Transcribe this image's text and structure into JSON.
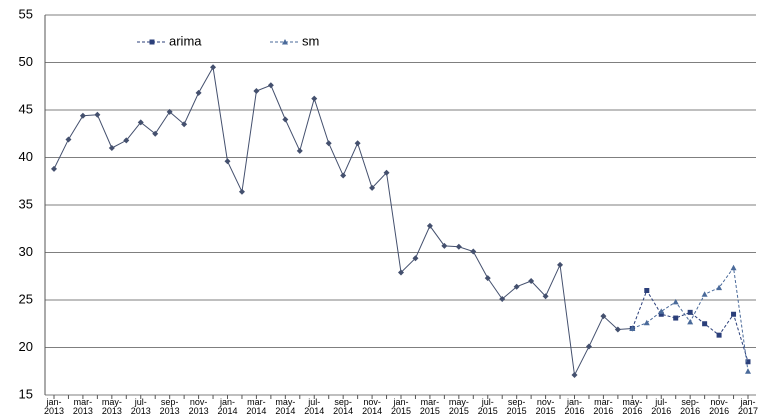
{
  "chart_data": {
    "type": "line",
    "categories": [
      "jan-2013",
      null,
      "mar-2013",
      null,
      "may-2013",
      null,
      "jul-2013",
      null,
      "sep-2013",
      null,
      "nov-2013",
      null,
      "jan-2014",
      null,
      "mar-2014",
      null,
      "may-2014",
      null,
      "jul-2014",
      null,
      "sep-2014",
      null,
      "nov-2014",
      null,
      "jan-2015",
      null,
      "mar-2015",
      null,
      "may-2015",
      null,
      "jul-2015",
      null,
      "sep-2015",
      null,
      "nov-2015",
      null,
      "jan-2016",
      null,
      "mar-2016",
      null,
      "may-2016",
      null,
      "jul-2016",
      null,
      "sep-2016",
      null,
      "nov-2016",
      null,
      "jan-2017"
    ],
    "series": [
      {
        "color": "#44506e",
        "marker": "diamond",
        "dash": false,
        "values": [
          38.8,
          41.9,
          44.4,
          44.5,
          41.0,
          41.8,
          43.7,
          42.5,
          44.8,
          43.5,
          46.8,
          49.5,
          39.6,
          36.4,
          47.0,
          47.6,
          44.0,
          40.7,
          46.2,
          41.5,
          38.1,
          41.5,
          36.8,
          38.4,
          27.9,
          29.4,
          32.8,
          30.7,
          30.6,
          30.1,
          27.3,
          25.1,
          26.4,
          27.0,
          25.4,
          28.7,
          17.1,
          20.1,
          23.3,
          21.9,
          22.0,
          null,
          null,
          null,
          null,
          null,
          null,
          null,
          null
        ]
      },
      {
        "name": "arima",
        "color": "#2b3f7a",
        "marker": "square",
        "dash": true,
        "values": [
          null,
          null,
          null,
          null,
          null,
          null,
          null,
          null,
          null,
          null,
          null,
          null,
          null,
          null,
          null,
          null,
          null,
          null,
          null,
          null,
          null,
          null,
          null,
          null,
          null,
          null,
          null,
          null,
          null,
          null,
          null,
          null,
          null,
          null,
          null,
          null,
          null,
          null,
          null,
          null,
          22.0,
          26.0,
          23.5,
          23.1,
          23.7,
          22.5,
          21.3,
          23.5,
          18.5
        ]
      },
      {
        "name": "sm",
        "color": "#4a6a9a",
        "marker": "triangle",
        "dash": true,
        "values": [
          null,
          null,
          null,
          null,
          null,
          null,
          null,
          null,
          null,
          null,
          null,
          null,
          null,
          null,
          null,
          null,
          null,
          null,
          null,
          null,
          null,
          null,
          null,
          null,
          null,
          null,
          null,
          null,
          null,
          null,
          null,
          null,
          null,
          null,
          null,
          null,
          null,
          null,
          null,
          null,
          22.0,
          22.6,
          23.8,
          24.8,
          22.7,
          25.6,
          26.3,
          28.4,
          17.5
        ]
      }
    ],
    "ylim": [
      15,
      55
    ],
    "yticks": [
      15,
      20,
      25,
      30,
      35,
      40,
      45,
      50,
      55
    ],
    "grid": true,
    "legend": "top-left"
  }
}
